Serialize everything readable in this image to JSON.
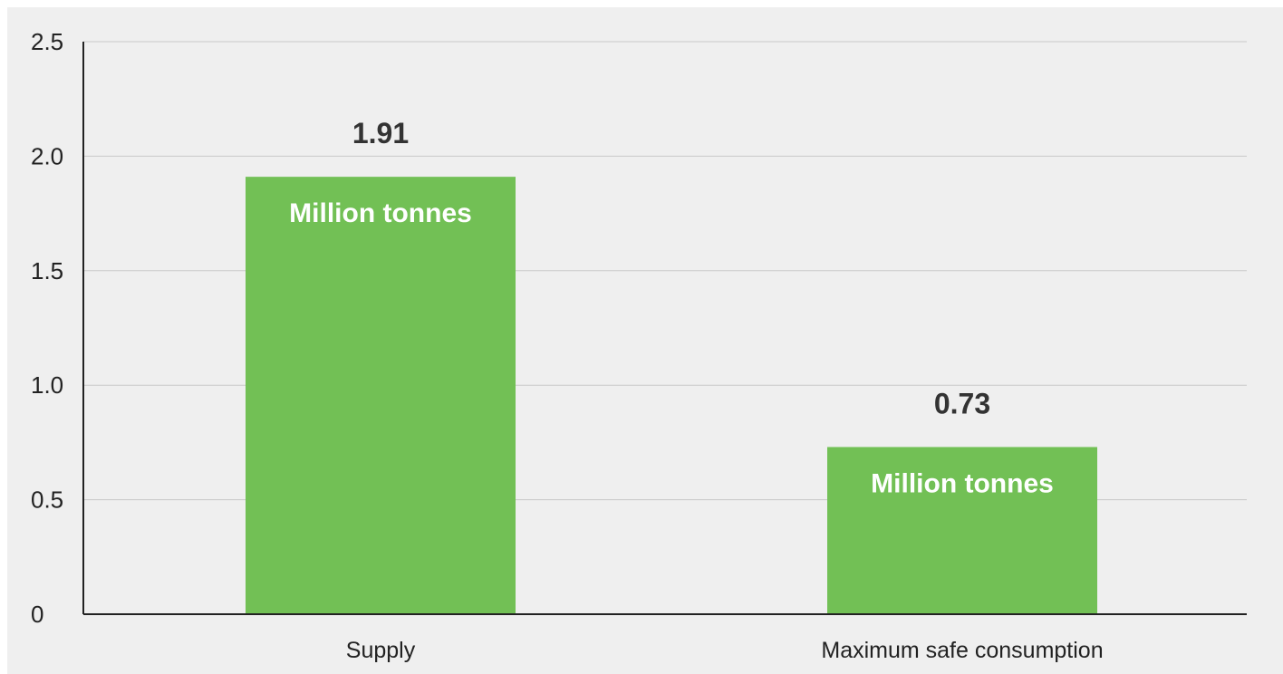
{
  "chart_data": {
    "type": "bar",
    "categories": [
      "Supply",
      "Maximum safe consumption"
    ],
    "values": [
      1.91,
      0.73
    ],
    "value_labels": [
      "1.91",
      "0.73"
    ],
    "bar_labels": [
      "Million tonnes",
      "Million tonnes"
    ],
    "title": "",
    "xlabel": "",
    "ylabel": "",
    "ylim": [
      0,
      2.5
    ],
    "y_ticks": [
      0,
      0.5,
      1.0,
      1.5,
      2.0,
      2.5
    ],
    "y_tick_labels": [
      "0",
      "0.5",
      "1.0",
      "1.5",
      "2.0",
      "2.5"
    ],
    "grid": true,
    "legend": "none",
    "colors": {
      "bar": "#72c055",
      "background": "#efefef",
      "grid": "#c8c8c8",
      "axis": "#222222",
      "value_label": "#333333",
      "bar_label": "#ffffff"
    }
  }
}
